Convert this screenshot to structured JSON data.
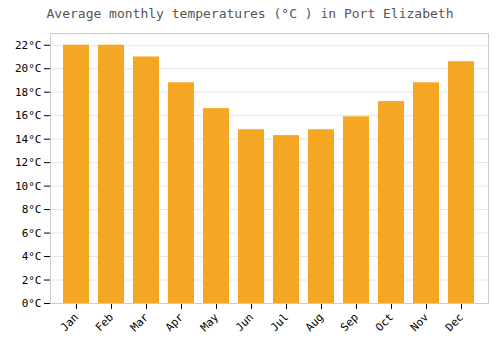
{
  "chart_data": {
    "type": "bar",
    "title": "Average monthly temperatures (°C ) in Port Elizabeth",
    "categories": [
      "Jan",
      "Feb",
      "Mar",
      "Apr",
      "May",
      "Jun",
      "Jul",
      "Aug",
      "Sep",
      "Oct",
      "Nov",
      "Dec"
    ],
    "values": [
      22.0,
      22.0,
      21.0,
      18.8,
      16.6,
      14.8,
      14.3,
      14.8,
      15.9,
      17.2,
      18.8,
      20.6
    ],
    "color": "#F5A623",
    "ylim": [
      0,
      23
    ],
    "yticks": [
      {
        "value": 0,
        "label": "0°C"
      },
      {
        "value": 2,
        "label": "2°C"
      },
      {
        "value": 4,
        "label": "4°C"
      },
      {
        "value": 6,
        "label": "6°C"
      },
      {
        "value": 8,
        "label": "8°C"
      },
      {
        "value": 10,
        "label": "10°C"
      },
      {
        "value": 12,
        "label": "12°C"
      },
      {
        "value": 14,
        "label": "14°C"
      },
      {
        "value": 16,
        "label": "16°C"
      },
      {
        "value": 18,
        "label": "18°C"
      },
      {
        "value": 20,
        "label": "20°C"
      },
      {
        "value": 22,
        "label": "22°C"
      }
    ],
    "grid": true
  }
}
